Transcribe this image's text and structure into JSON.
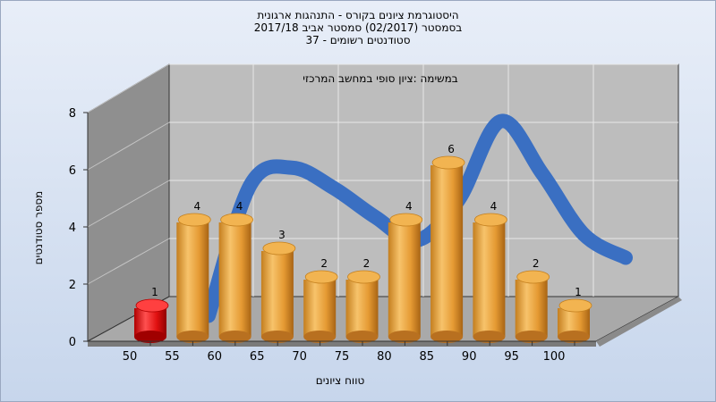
{
  "header": {
    "line1": "היסטוגרמת ציונים בקורס - התנהגות ארגונית",
    "line2": "בסמסטר  (02/2017)  סמסטר אביב 2017/18",
    "line3": "סטודנטים רשומים - 37"
  },
  "colors": {
    "bar": "#e9a646",
    "highlight": "#e01010",
    "curve": "#3a6fc2",
    "wall": "#b8b8b8",
    "side": "#8c8c8c"
  },
  "chart_data": {
    "type": "bar",
    "title": "במשימה :ציון סופי במחשב המרכזי",
    "xlabel": "טווח ציונים",
    "ylabel": "מספר סטודנטים",
    "categories": [
      "50",
      "55",
      "60",
      "65",
      "70",
      "75",
      "80",
      "85",
      "90",
      "95",
      "100"
    ],
    "values": [
      1,
      4,
      4,
      3,
      2,
      2,
      4,
      6,
      4,
      2,
      1
    ],
    "highlight_index": 0,
    "yticks": [
      0,
      2,
      4,
      6,
      8
    ],
    "ylim": [
      0,
      8
    ],
    "grid": true,
    "curve": {
      "type": "normal-fit",
      "x": [
        55,
        60,
        65,
        70,
        75,
        80,
        85,
        90,
        95,
        100,
        105
      ],
      "y": [
        0.2,
        4.7,
        5.3,
        4.6,
        3.6,
        2.8,
        4.2,
        6.9,
        5.1,
        3.0,
        2.2
      ]
    }
  }
}
